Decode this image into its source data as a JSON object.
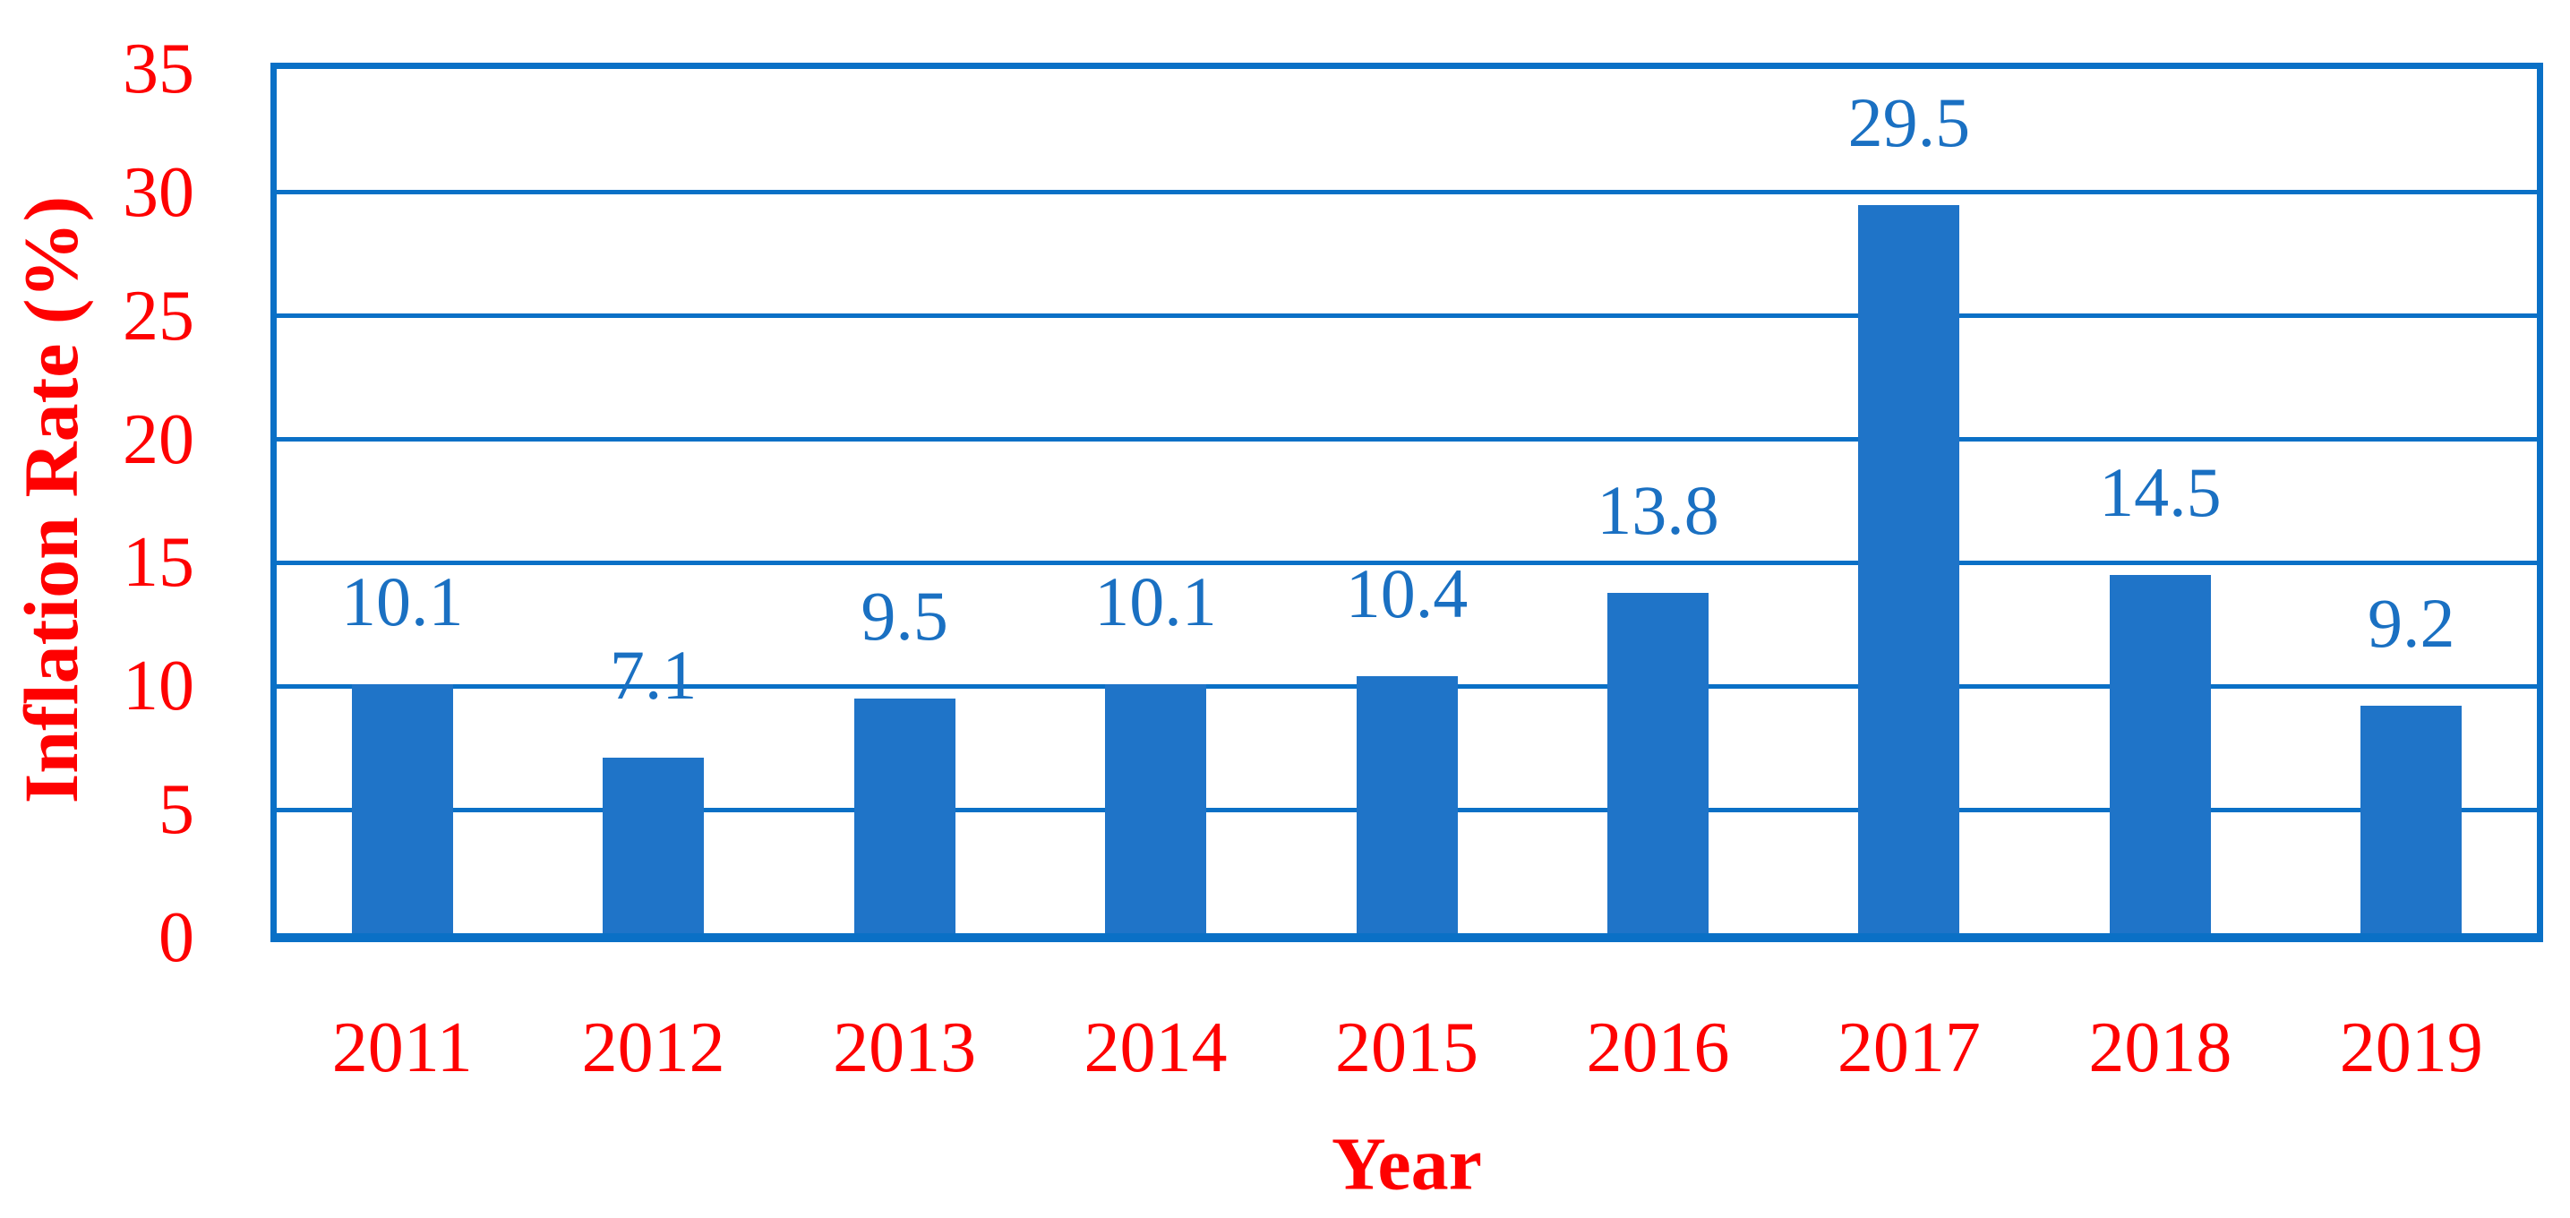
{
  "chart_data": {
    "type": "bar",
    "title": "",
    "categories": [
      "2011",
      "2012",
      "2013",
      "2014",
      "2015",
      "2016",
      "2017",
      "2018",
      "2019"
    ],
    "values": [
      10.1,
      7.1,
      9.5,
      10.1,
      10.4,
      13.8,
      29.5,
      14.5,
      9.2
    ],
    "data_labels": [
      "10.1",
      "7.1",
      "9.5",
      "10.1",
      "10.4",
      "13.8",
      "29.5",
      "14.5",
      "9.2"
    ],
    "xlabel": "Year",
    "ylabel": "Inflation Rate (%)",
    "ylim": [
      0,
      35
    ],
    "yticks": [
      0,
      5,
      10,
      15,
      20,
      25,
      30,
      35
    ],
    "grid": true,
    "legend": "none",
    "colors": {
      "bar_fill": "#1F74C8",
      "grid_and_border": "#0A70C6",
      "data_label_text": "#1A70C2",
      "axis_text": "#FE0101"
    }
  }
}
